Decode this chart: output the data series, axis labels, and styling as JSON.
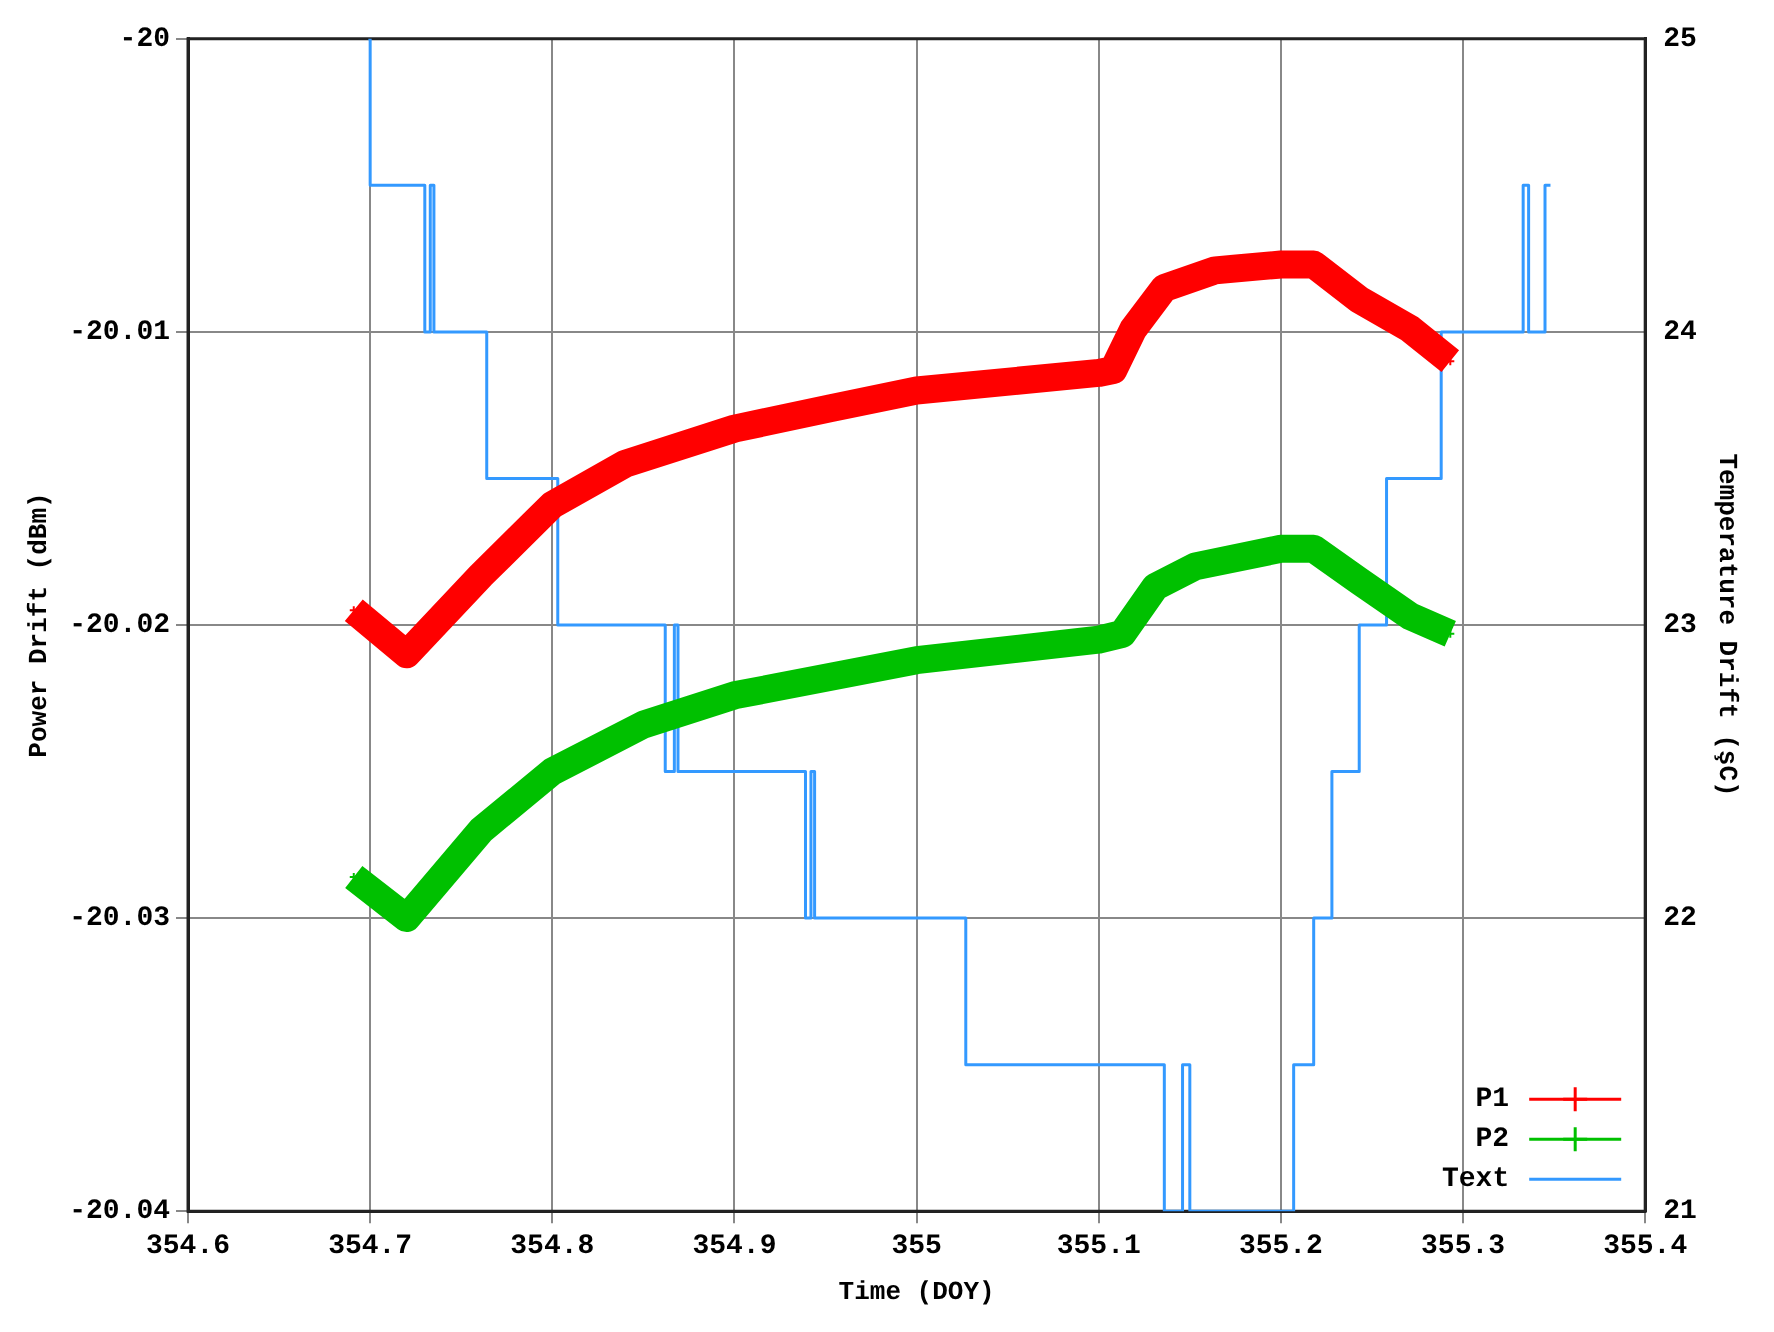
{
  "chart_data": {
    "type": "line",
    "xlabel": "Time (DOY)",
    "ylabel": "Power Drift (dBm)",
    "y2label": "Temperature Drift (şC)",
    "xlim": [
      354.6,
      355.4
    ],
    "xticks": [
      354.6,
      354.7,
      354.8,
      354.9,
      355,
      355.1,
      355.2,
      355.3,
      355.4
    ],
    "ylim": [
      -20.04,
      -20
    ],
    "yticks": [
      -20.04,
      -20.03,
      -20.02,
      -20.01,
      -20
    ],
    "y2lim": [
      21,
      25
    ],
    "y2ticks": [
      21,
      22,
      23,
      24,
      25
    ],
    "grid": true,
    "legend": "bottom right",
    "series": [
      {
        "name": "P1",
        "color": "#ff0000",
        "marker": "cross",
        "x": [
          354.691,
          354.72,
          354.761,
          354.8,
          354.84,
          354.9,
          354.953,
          355,
          355.1,
          355.108,
          355.119,
          355.136,
          355.164,
          355.2,
          355.218,
          355.243,
          355.271,
          355.293
        ],
        "values": [
          -20.0195,
          -20.021,
          -20.0183,
          -20.0159,
          -20.0145,
          -20.0133,
          -20.0126,
          -20.012,
          -20.0114,
          -20.0113,
          -20.0099,
          -20.0085,
          -20.0079,
          -20.0077,
          -20.0077,
          -20.0089,
          -20.0099,
          -20.011
        ]
      },
      {
        "name": "P2",
        "color": "#00c000",
        "marker": "cross",
        "x": [
          354.691,
          354.72,
          354.761,
          354.8,
          354.85,
          354.9,
          355,
          355.1,
          355.113,
          355.131,
          355.153,
          355.2,
          355.218,
          355.243,
          355.271,
          355.293
        ],
        "values": [
          -20.0286,
          -20.03,
          -20.027,
          -20.025,
          -20.0234,
          -20.0224,
          -20.0212,
          -20.0205,
          -20.0203,
          -20.0187,
          -20.018,
          -20.0174,
          -20.0174,
          -20.0185,
          -20.0197,
          -20.0203
        ]
      },
      {
        "name": "Text",
        "type": "step",
        "axis": "y2",
        "color": "#3399ff",
        "marker": "none",
        "x": [
          354.699,
          354.7,
          354.73,
          354.733,
          354.735,
          354.764,
          354.803,
          354.862,
          354.867,
          354.869,
          354.939,
          354.942,
          354.944,
          355.027,
          355.136,
          355.146,
          355.15,
          355.207,
          355.218,
          355.228,
          355.243,
          355.258,
          355.288,
          355.333,
          355.336,
          355.345,
          355.348
        ],
        "values": [
          25,
          24.5,
          24,
          24.5,
          24,
          23.5,
          23,
          22.5,
          23,
          22.5,
          22,
          22.5,
          22,
          21.5,
          21,
          21.5,
          21,
          21.5,
          22,
          22.5,
          23,
          23.5,
          24,
          24.5,
          24,
          24.5,
          24.5
        ]
      }
    ]
  }
}
